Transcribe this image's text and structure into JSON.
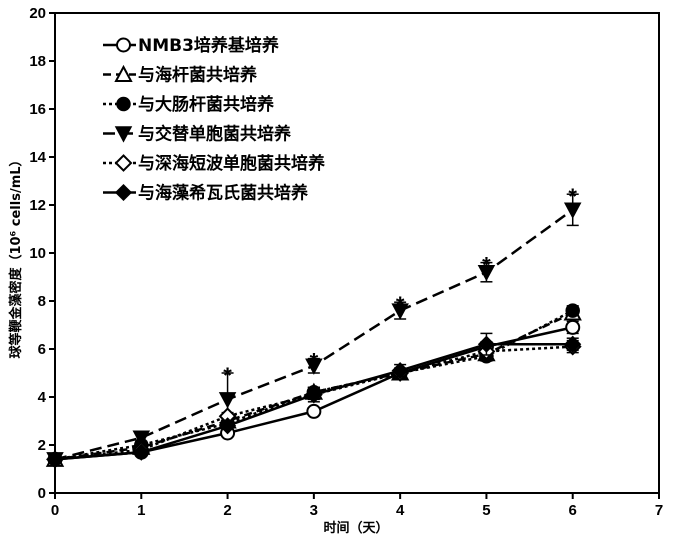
{
  "chart_data": {
    "type": "line",
    "xlabel": "时间（天）",
    "ylabel": "球等鞭金藻密度（10⁶ cells/mL）",
    "xlim": [
      0,
      7
    ],
    "ylim": [
      0,
      20
    ],
    "x_ticks": [
      0,
      1,
      2,
      3,
      4,
      5,
      6,
      7
    ],
    "y_ticks": [
      0,
      2,
      4,
      6,
      8,
      10,
      12,
      14,
      16,
      18,
      20
    ],
    "grid": false,
    "legend_position": "top-left",
    "x": [
      0,
      1,
      2,
      3,
      4,
      5,
      6
    ],
    "series": [
      {
        "name": "NMB3培养基培养",
        "marker": "circle-open",
        "dash": "solid",
        "values": [
          1.4,
          1.7,
          2.5,
          3.4,
          5.0,
          6.1,
          6.9
        ],
        "errors": [
          0.1,
          0.1,
          0.15,
          0.15,
          0.2,
          0.2,
          0.25
        ]
      },
      {
        "name": "与海杆菌共培养",
        "marker": "triangle-open",
        "dash": "dashed",
        "values": [
          1.4,
          1.9,
          3.0,
          4.2,
          5.0,
          5.8,
          7.5
        ],
        "errors": [
          0.1,
          0.1,
          0.15,
          0.2,
          0.2,
          0.2,
          0.25
        ]
      },
      {
        "name": "与大肠杆菌共培养",
        "marker": "circle-filled",
        "dash": "dotted",
        "values": [
          1.4,
          2.0,
          2.9,
          4.2,
          5.0,
          5.7,
          7.6
        ],
        "errors": [
          0.1,
          0.1,
          0.15,
          0.2,
          0.2,
          0.2,
          0.2
        ]
      },
      {
        "name": "与交替单胞菌共培养",
        "marker": "triangle-down-filled",
        "dash": "long-dash",
        "values": [
          1.4,
          2.3,
          3.9,
          5.3,
          7.6,
          9.2,
          11.8
        ],
        "errors": [
          0.1,
          0.15,
          1.1,
          0.3,
          0.35,
          0.4,
          0.65
        ]
      },
      {
        "name": "与深海短波单胞菌共培养",
        "marker": "diamond-open",
        "dash": "dotted",
        "values": [
          1.4,
          1.8,
          3.2,
          4.1,
          5.0,
          5.9,
          6.1
        ],
        "errors": [
          0.1,
          0.1,
          0.15,
          0.2,
          0.2,
          0.2,
          0.25
        ]
      },
      {
        "name": "与海藻希瓦氏菌共培养",
        "marker": "diamond-filled",
        "dash": "solid",
        "values": [
          1.4,
          1.7,
          2.8,
          4.1,
          5.1,
          6.2,
          6.2
        ],
        "errors": [
          0.1,
          0.1,
          0.15,
          0.3,
          0.25,
          0.45,
          0.25
        ]
      }
    ],
    "annotations": [
      {
        "text": "*",
        "x": 2,
        "y": 5.0
      },
      {
        "text": "*",
        "x": 3,
        "y": 5.6
      },
      {
        "text": "*",
        "x": 4,
        "y": 7.95
      },
      {
        "text": "*",
        "x": 5,
        "y": 9.6
      },
      {
        "text": "*",
        "x": 6,
        "y": 12.45
      }
    ]
  }
}
